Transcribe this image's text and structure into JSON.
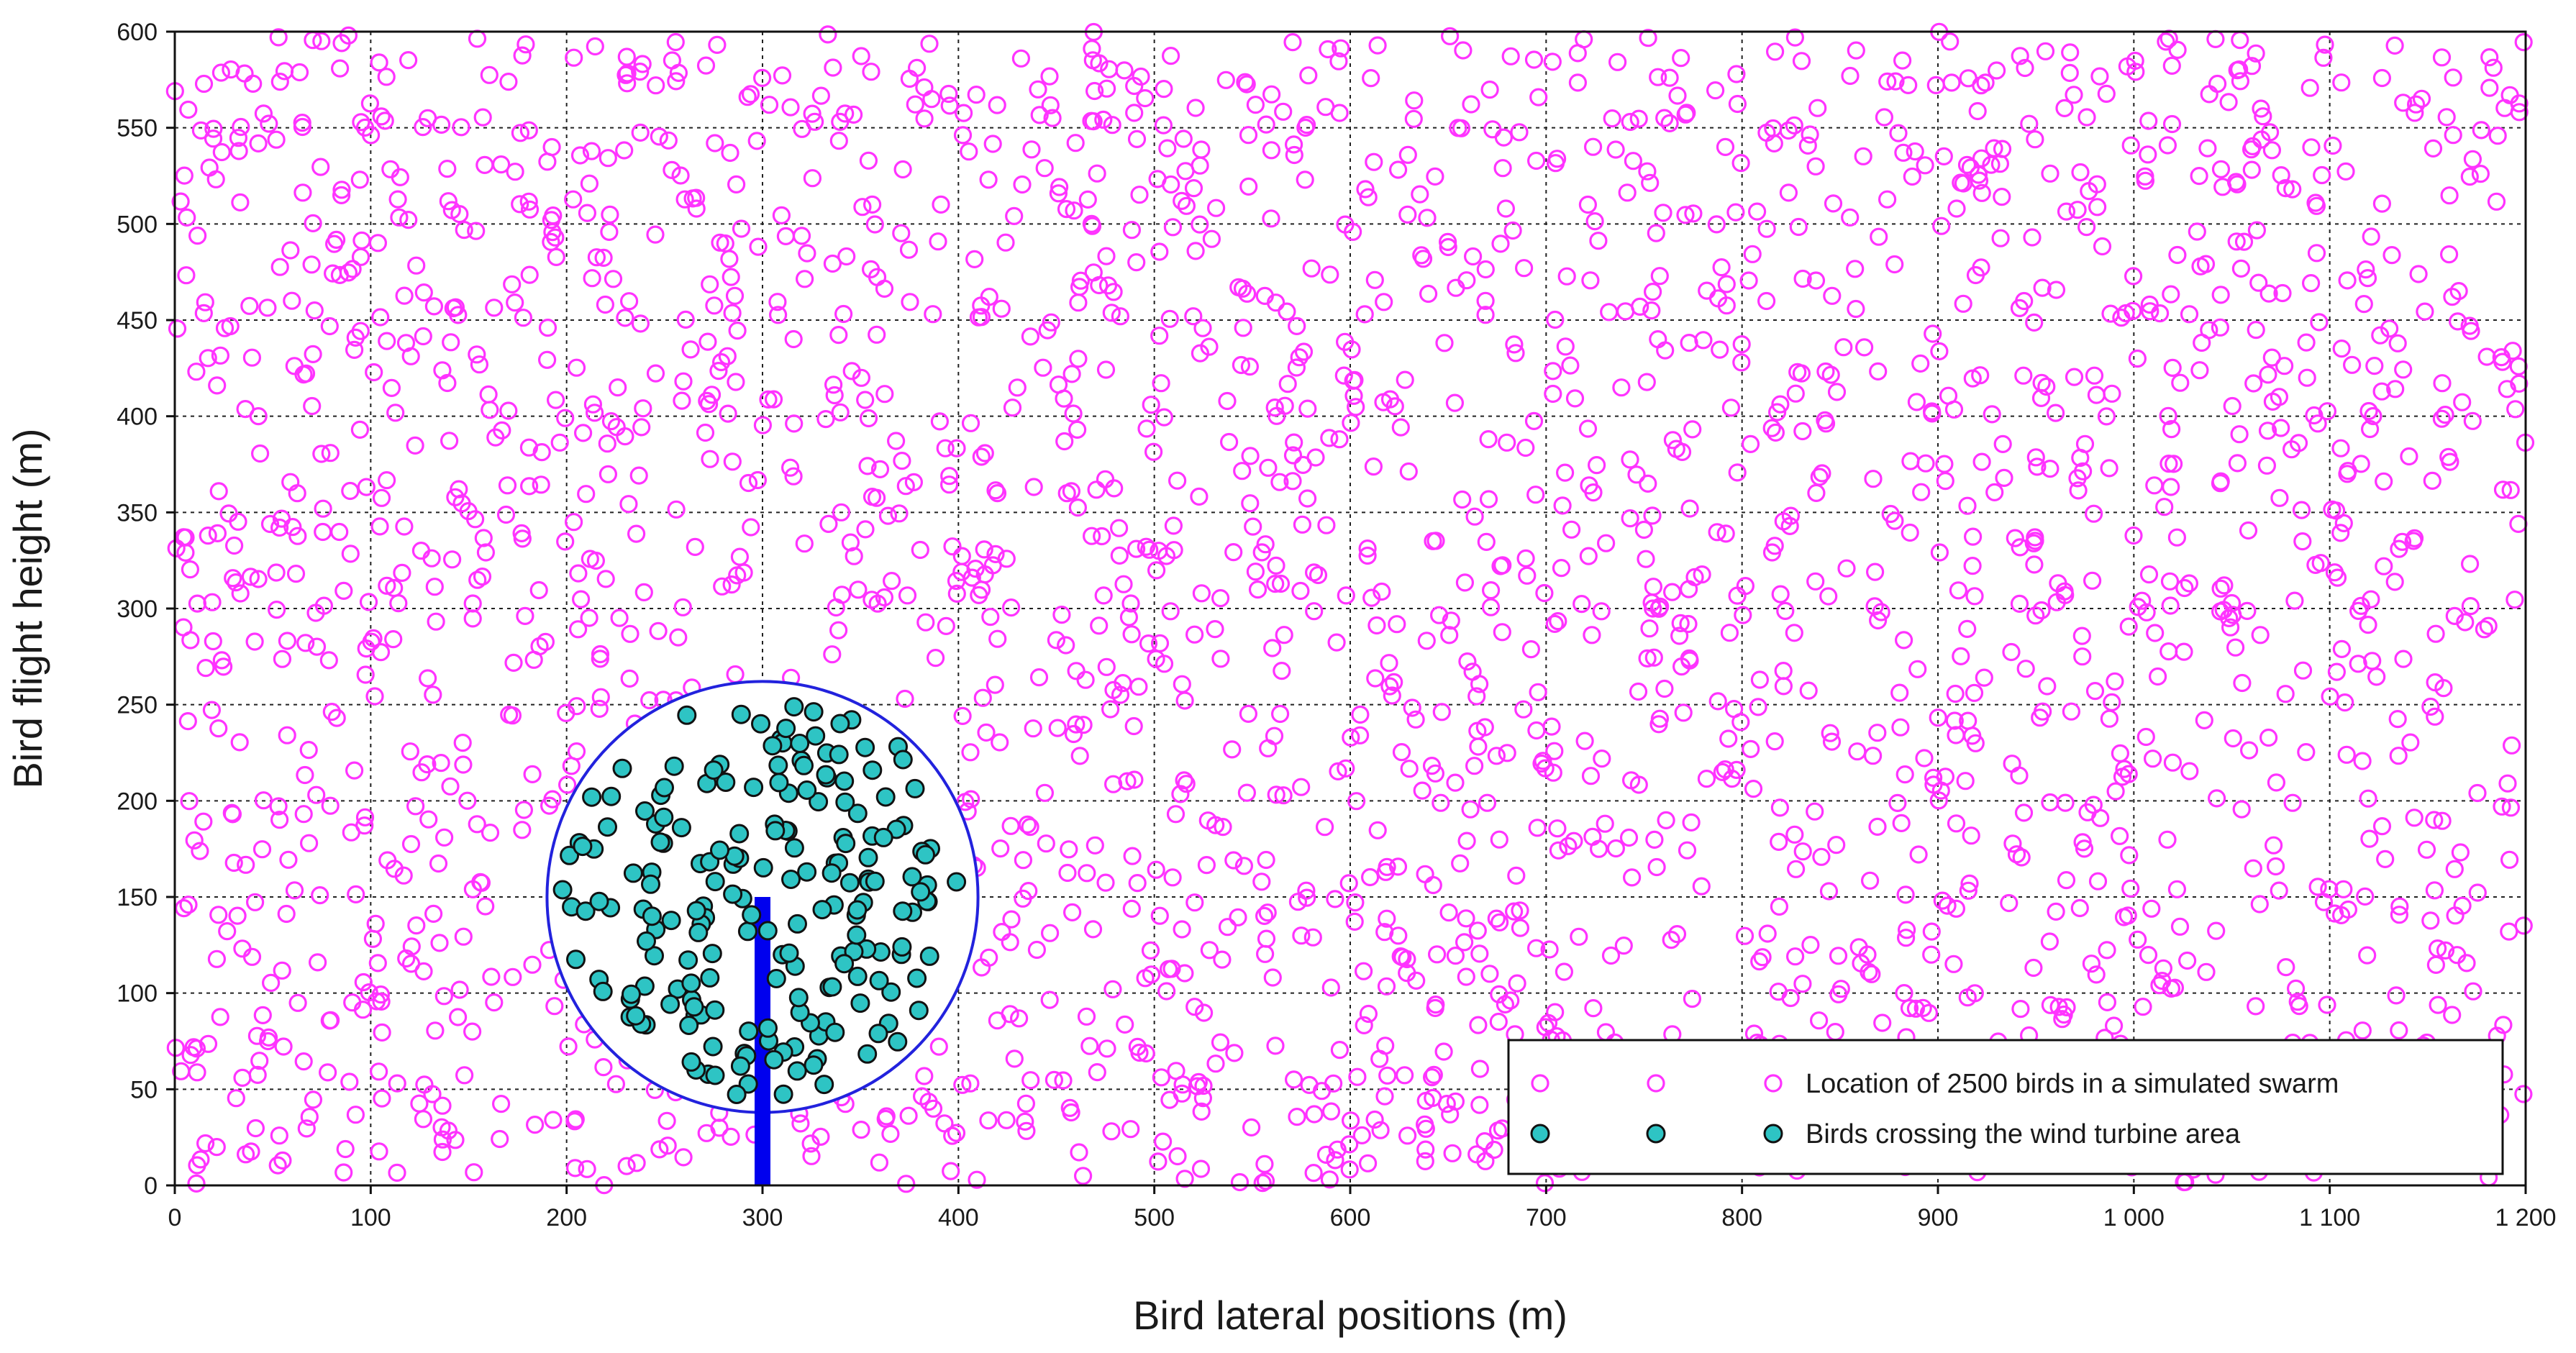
{
  "chart_data": {
    "type": "scatter",
    "xlabel": "Bird lateral positions (m)",
    "ylabel": "Bird flight height (m)",
    "xlim": [
      0,
      1200
    ],
    "ylim": [
      0,
      600
    ],
    "grid": true,
    "legend_position": "bottom-right",
    "x_ticks": [
      0,
      100,
      200,
      300,
      400,
      500,
      600,
      700,
      800,
      900,
      1000,
      1100,
      1200
    ],
    "x_tick_labels": [
      "0",
      "100",
      "200",
      "300",
      "400",
      "500",
      "600",
      "700",
      "800",
      "900",
      "1 000",
      "1 100",
      "1 200"
    ],
    "y_ticks": [
      0,
      50,
      100,
      150,
      200,
      250,
      300,
      350,
      400,
      450,
      500,
      550,
      600
    ],
    "y_tick_labels": [
      "0",
      "50",
      "100",
      "150",
      "200",
      "250",
      "300",
      "350",
      "400",
      "450",
      "500",
      "550",
      "600"
    ],
    "series": [
      {
        "name": "Location of 2500 birds in a simulated swarm",
        "marker": "open-circle",
        "color": "#ff33ff",
        "count": 2500,
        "distribution": "uniform random",
        "x_range": [
          0,
          1200
        ],
        "y_range": [
          0,
          600
        ],
        "seed": 20240611
      },
      {
        "name": "Birds crossing the wind turbine area",
        "marker": "filled-circle",
        "fill": "#2ec4c4",
        "edge": "#111111",
        "count": 200,
        "region": "circle",
        "center": [
          300,
          150
        ],
        "radius": 110,
        "seed": 777
      }
    ],
    "turbine": {
      "rotor_center": [
        300,
        150
      ],
      "rotor_radius": 110,
      "tower_x": 300,
      "tower_y_range": [
        0,
        150
      ],
      "rotor_color": "#2222dd",
      "tower_color": "#0000ee"
    },
    "legend": {
      "entries": [
        {
          "label": "Location of 2500 birds in a simulated swarm"
        },
        {
          "label": "Birds crossing the wind turbine area"
        }
      ]
    }
  }
}
